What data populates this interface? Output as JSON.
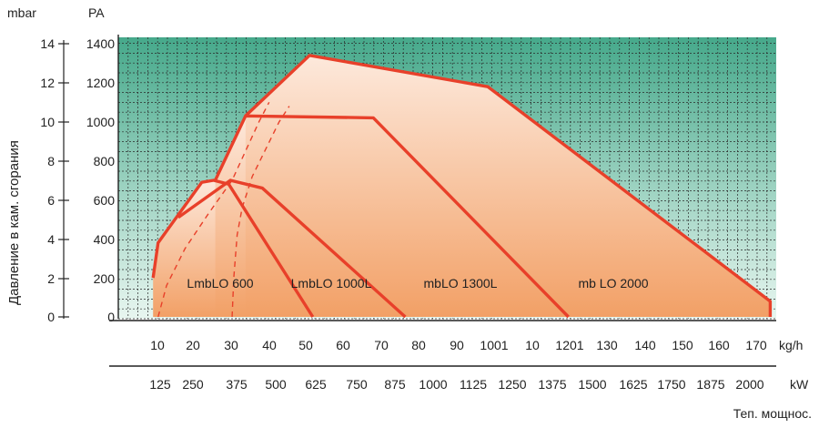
{
  "chart_data": {
    "type": "area",
    "ylabel": "Давление в кам. сгорания",
    "y_units": {
      "left": "mbar",
      "right": "PA"
    },
    "y_ticks_mbar": [
      "14",
      "12",
      "10",
      "8",
      "6",
      "4",
      "2",
      "0"
    ],
    "y_ticks_pa": [
      "1400",
      "1200",
      "1000",
      "800",
      "600",
      "400",
      "200",
      "0"
    ],
    "ylim_pa": [
      0,
      1400
    ],
    "x_ticks_kgh": [
      "10",
      "20",
      "30",
      "40",
      "50",
      "60",
      "70",
      "80",
      "90",
      "1001",
      "10",
      "1201",
      "130",
      "140",
      "150",
      "160",
      "170"
    ],
    "x_unit_kgh": "kg/h",
    "x_ticks_kw": [
      "125",
      "250",
      "375",
      "500",
      "625",
      "750",
      "875",
      "1000",
      "1125",
      "1250",
      "1375",
      "1500",
      "1625",
      "1750",
      "1875",
      "2000"
    ],
    "x_unit_kw": "kW",
    "xlabel": "Теп. мощнос.",
    "xlim_kw": [
      0,
      2000
    ],
    "grid": true,
    "series": [
      {
        "name": "LmbLO 600",
        "points_kw_pa": [
          [
            125,
            200
          ],
          [
            140,
            380
          ],
          [
            270,
            690
          ],
          [
            305,
            700
          ],
          [
            350,
            680
          ],
          [
            600,
            0
          ]
        ]
      },
      {
        "name": "LmbLO 1000L",
        "points_kw_pa": [
          [
            200,
            510
          ],
          [
            355,
            700
          ],
          [
            450,
            660
          ],
          [
            875,
            0
          ]
        ]
      },
      {
        "name": "mbLO 1300L",
        "points_kw_pa": [
          [
            310,
            700
          ],
          [
            400,
            1030
          ],
          [
            780,
            1020
          ],
          [
            1360,
            0
          ]
        ]
      },
      {
        "name": "mb LO 2000",
        "points_kw_pa": [
          [
            400,
            1030
          ],
          [
            590,
            1340
          ],
          [
            1120,
            1180
          ],
          [
            1960,
            80
          ],
          [
            1960,
            0
          ]
        ]
      }
    ],
    "dashed_curves_kw_pa": [
      [
        [
          140,
          0
        ],
        [
          165,
          160
        ],
        [
          220,
          350
        ],
        [
          290,
          530
        ],
        [
          360,
          700
        ],
        [
          440,
          1000
        ],
        [
          470,
          1100
        ]
      ],
      [
        [
          360,
          0
        ],
        [
          365,
          200
        ],
        [
          375,
          420
        ],
        [
          390,
          560
        ],
        [
          420,
          720
        ],
        [
          500,
          1000
        ],
        [
          530,
          1080
        ]
      ]
    ],
    "colors": {
      "grid_bg_top": "#46a98b",
      "grid_bg_bottom": "#e8f6f0",
      "grid_line": "#2a2a2a",
      "zone_light": "#fde9dc",
      "zone_dark": "#f2a066",
      "outline": "#e8402a"
    }
  }
}
